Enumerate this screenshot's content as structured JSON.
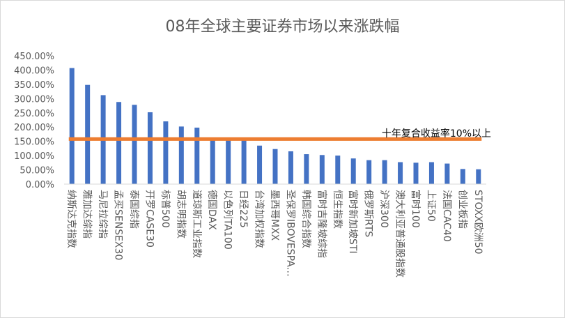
{
  "chart_data": {
    "type": "bar",
    "title": "08年全球主要证券市场以来涨跌幅",
    "categories": [
      "纳斯达克指数",
      "雅加达综指",
      "马尼拉综指",
      "孟买SENSEX30",
      "泰国综指",
      "开罗CASE30",
      "标普500",
      "胡志明指数",
      "道琼斯工业指数",
      "德国DAX",
      "以色列TA100",
      "日经225",
      "台湾加权指数",
      "墨西哥MXX",
      "圣保罗IBOVESPA…",
      "韩国综合指数",
      "富时吉隆坡综指",
      "恒生指数",
      "富时新加坡STI",
      "俄罗斯RTS",
      "沪深300",
      "澳大利亚普通股指数",
      "富时100",
      "上证50",
      "法国CAC40",
      "创业板指",
      "STOXX欧洲50"
    ],
    "values": [
      407,
      348,
      312,
      288,
      278,
      252,
      220,
      202,
      198,
      158,
      156,
      153,
      135,
      123,
      115,
      105,
      102,
      100,
      90,
      84,
      84,
      77,
      75,
      77,
      72,
      53,
      52
    ],
    "ylim": [
      0,
      450
    ],
    "yticks": [
      "0.00%",
      "50.00%",
      "100.00%",
      "150.00%",
      "200.00%",
      "250.00%",
      "300.00%",
      "350.00%",
      "400.00%",
      "450.00%"
    ],
    "reference_line": {
      "value": 158,
      "label": "十年复合收益率10%以上",
      "color": "#ed7d31"
    },
    "bar_color": "#4472c4",
    "grid": false,
    "legend": "none"
  }
}
